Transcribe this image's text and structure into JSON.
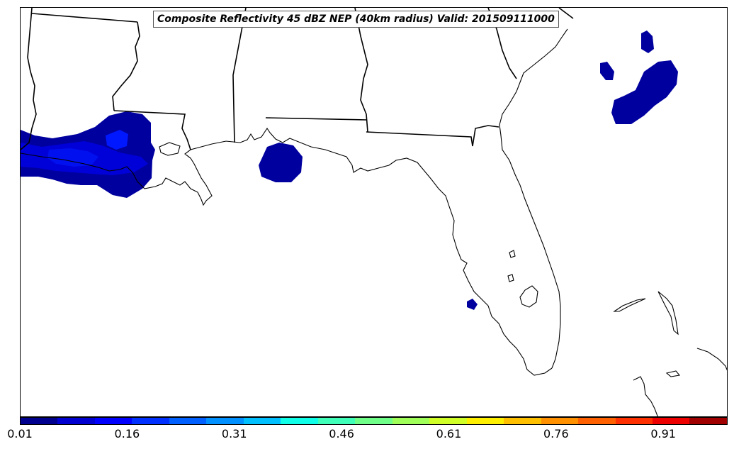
{
  "title": "Composite Reflectivity 45 dBZ NEP (40km radius) Valid: 201509111000",
  "colorbar": {
    "ticks": [
      "0.01",
      "0.16",
      "0.31",
      "0.46",
      "0.61",
      "0.76",
      "0.91"
    ],
    "colors": [
      "#00008f",
      "#0000d0",
      "#0000ff",
      "#0030ff",
      "#0060ff",
      "#0090ff",
      "#00c0ff",
      "#10ffe8",
      "#40ffb8",
      "#70ff88",
      "#a0ff58",
      "#d0ff28",
      "#ffef00",
      "#ffc000",
      "#ff9000",
      "#ff6000",
      "#ff3000",
      "#ef0000",
      "#a00000"
    ]
  },
  "colors": {
    "low_prob": "#00009f",
    "mid_prob": "#0000d8",
    "high_prob": "#0018ff"
  }
}
